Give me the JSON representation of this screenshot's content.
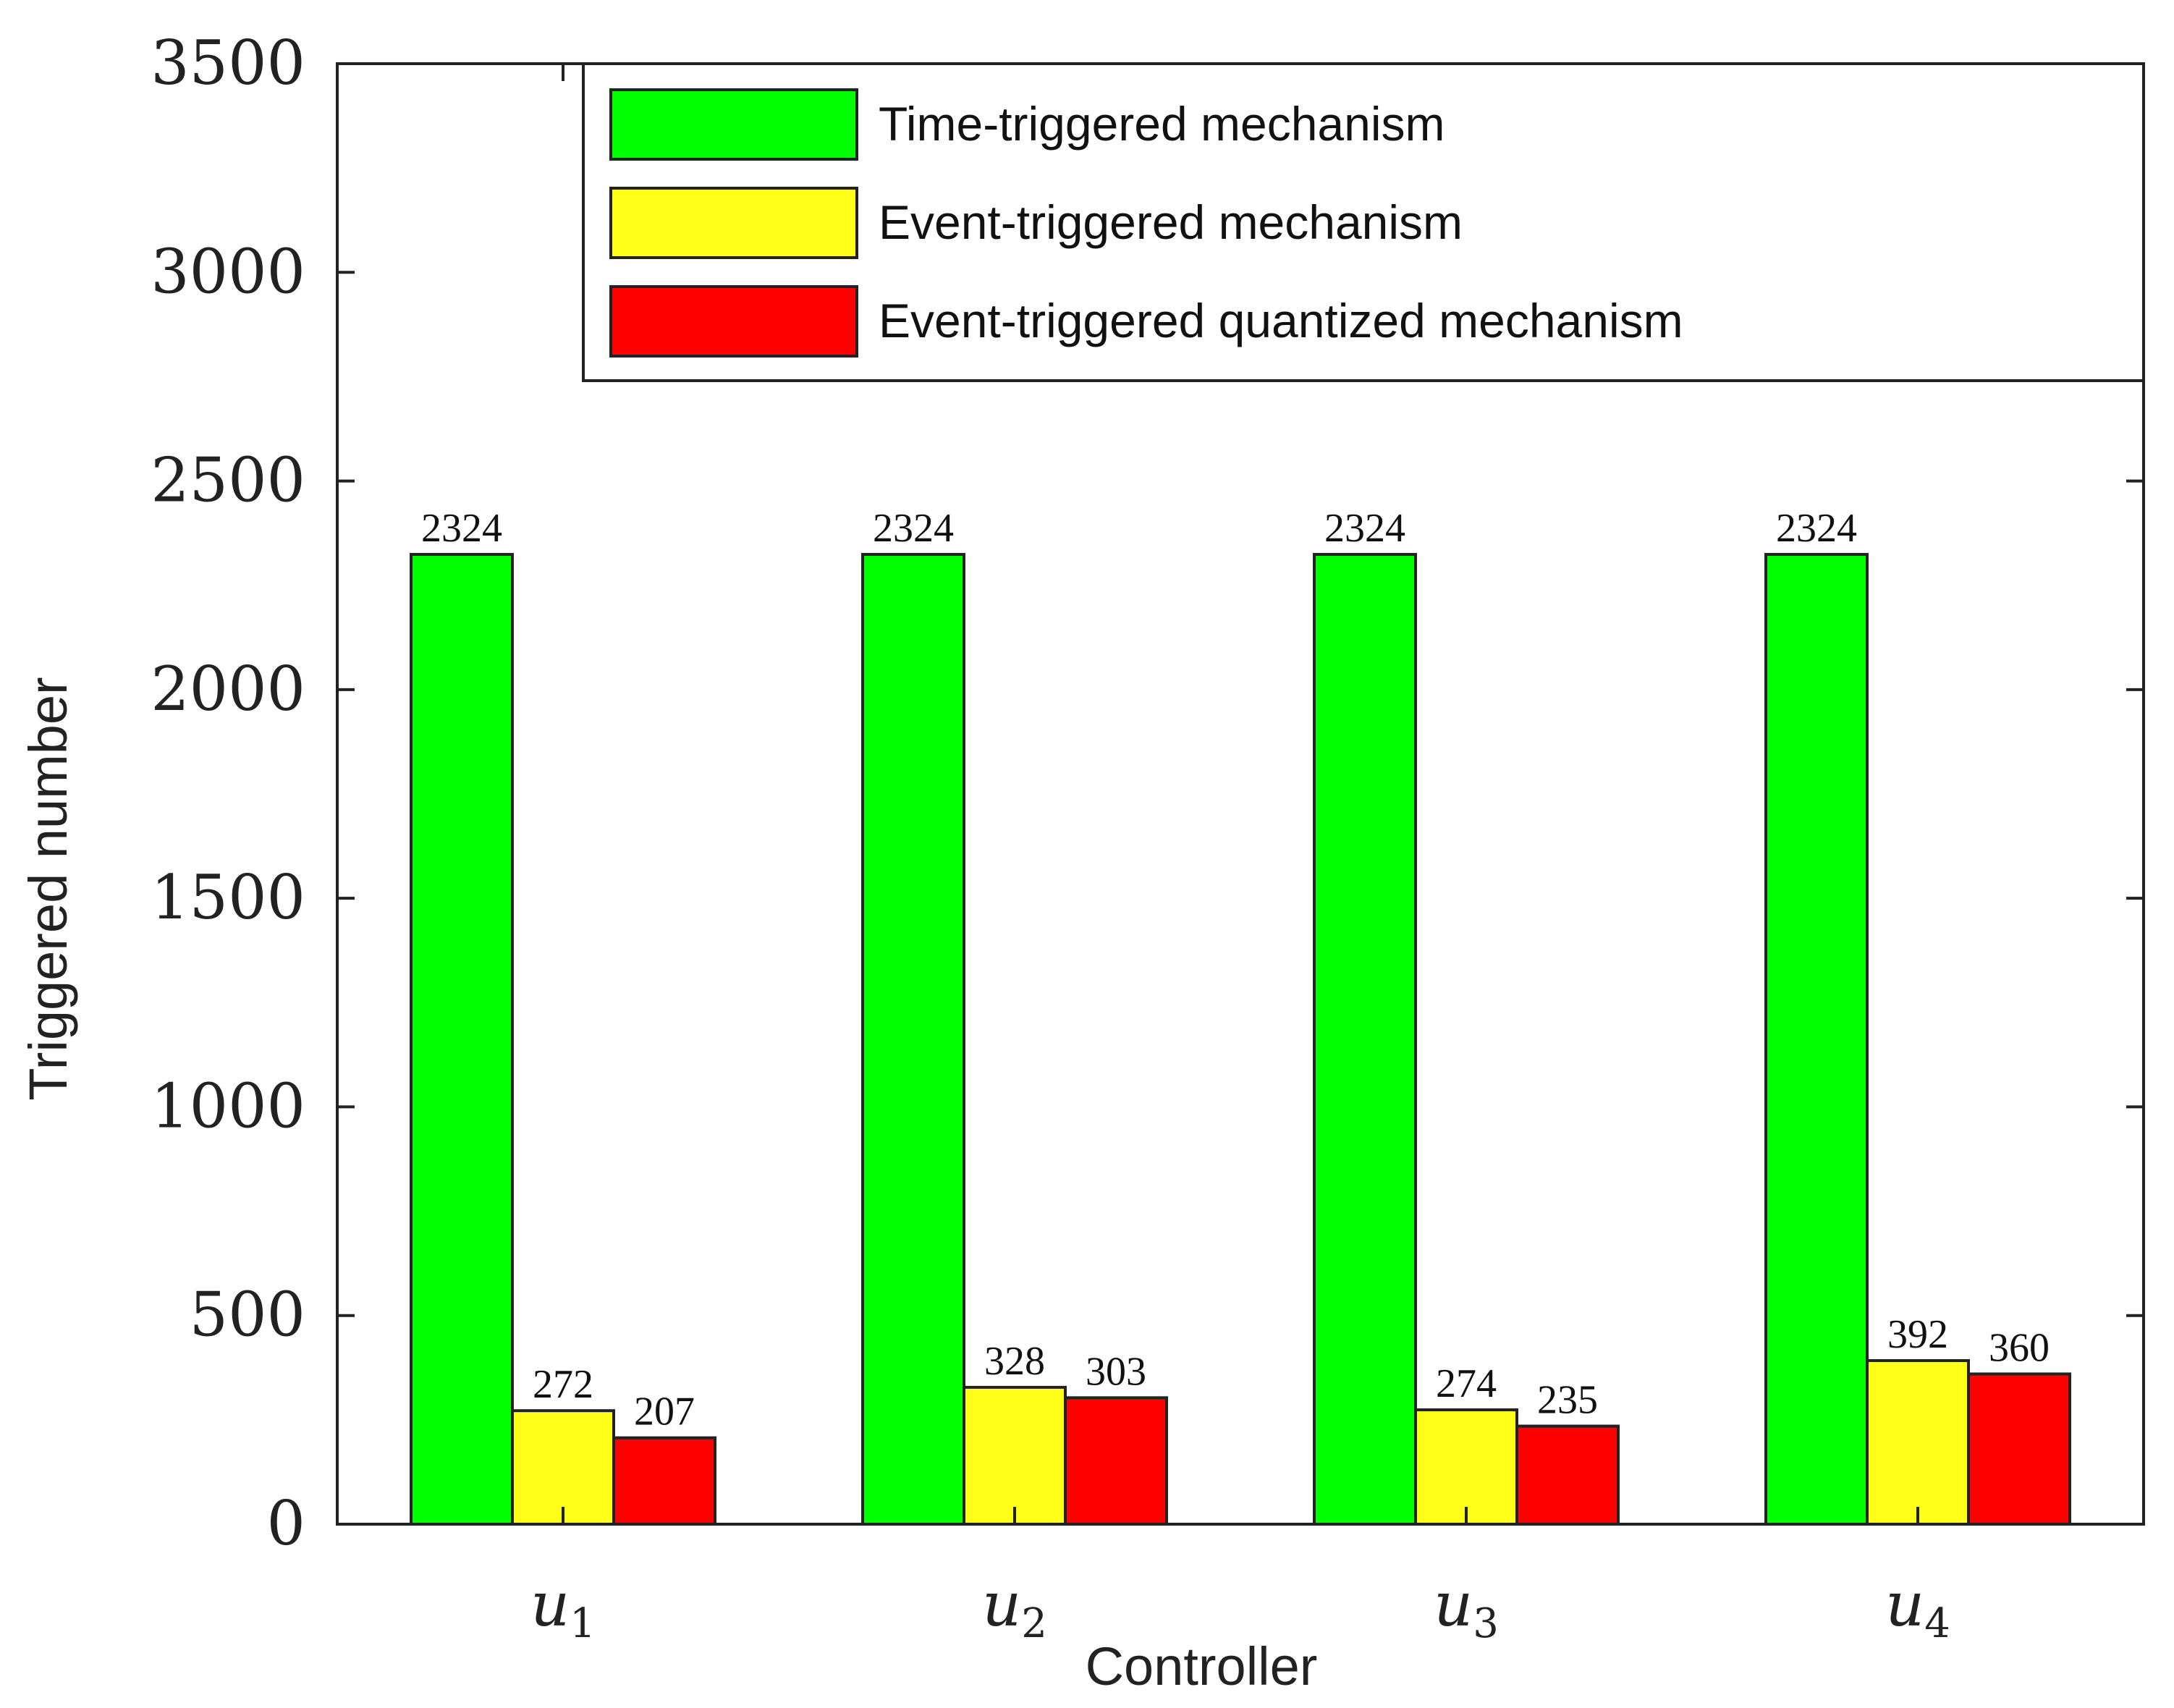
{
  "chart_data": {
    "type": "bar",
    "categories": [
      {
        "base": "u",
        "sub": "1"
      },
      {
        "base": "u",
        "sub": "2"
      },
      {
        "base": "u",
        "sub": "3"
      },
      {
        "base": "u",
        "sub": "4"
      }
    ],
    "series": [
      {
        "name": "Time-triggered mechanism",
        "color": "#00ff00",
        "values": [
          2324,
          2324,
          2324,
          2324
        ]
      },
      {
        "name": "Event-triggered mechanism",
        "color": "#ffff1a",
        "values": [
          272,
          328,
          274,
          392
        ]
      },
      {
        "name": "Event-triggered quantized mechanism",
        "color": "#ff0000",
        "values": [
          207,
          303,
          235,
          360
        ]
      }
    ],
    "xlabel": "Controller",
    "ylabel": "Triggered  number",
    "ylim": [
      0,
      3500
    ],
    "yticks": [
      0,
      500,
      1000,
      1500,
      2000,
      2500,
      3000,
      3500
    ],
    "data_labels": true,
    "grid": false,
    "legend_position": "top-right"
  }
}
